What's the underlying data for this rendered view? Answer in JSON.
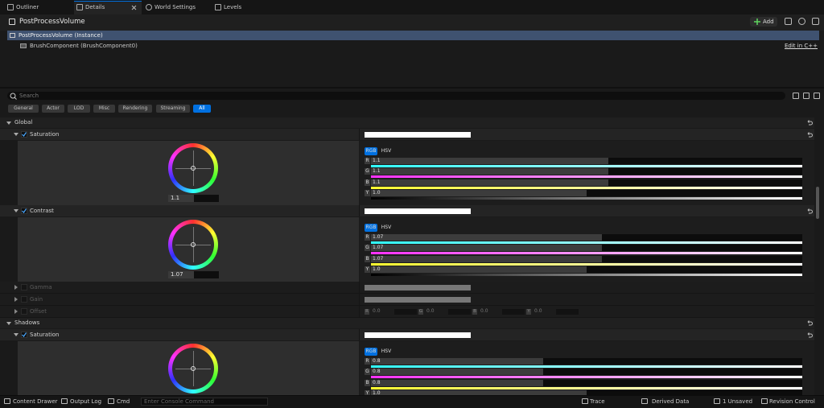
{
  "tabs": [
    "Outliner",
    "Details",
    "World Settings",
    "Levels"
  ],
  "header": {
    "title": "PostProcessVolume",
    "add": "Add"
  },
  "components": [
    "PostProcessVolume (Instance)",
    "BrushComponent (BrushComponent0)"
  ],
  "edit_link": "Edit in C++",
  "search_placeholder": "Search",
  "filters": [
    "General",
    "Actor",
    "LOD",
    "Misc",
    "Rendering",
    "Streaming",
    "All"
  ],
  "active_filter": "All",
  "sections": [
    {
      "name": "Global",
      "properties": [
        {
          "name": "Saturation",
          "wheel_value": "1.1",
          "modes": [
            "RGB",
            "HSV"
          ],
          "channels": [
            {
              "label": "R",
              "value": "1.1"
            },
            {
              "label": "G",
              "value": "1.1"
            },
            {
              "label": "B",
              "value": "1.1"
            },
            {
              "label": "Y",
              "value": "1.0"
            }
          ]
        },
        {
          "name": "Contrast",
          "wheel_value": "1.07",
          "modes": [
            "RGB",
            "HSV"
          ],
          "channels": [
            {
              "label": "R",
              "value": "1.07"
            },
            {
              "label": "G",
              "value": "1.07"
            },
            {
              "label": "B",
              "value": "1.07"
            },
            {
              "label": "Y",
              "value": "1.0"
            }
          ]
        }
      ],
      "collapsed": [
        {
          "name": "Gamma"
        },
        {
          "name": "Gain"
        },
        {
          "name": "Offset",
          "channels": [
            {
              "label": "R",
              "value": "0.0"
            },
            {
              "label": "G",
              "value": "0.0"
            },
            {
              "label": "B",
              "value": "0.0"
            },
            {
              "label": "Y",
              "value": "0.0"
            }
          ]
        }
      ]
    },
    {
      "name": "Shadows",
      "properties": [
        {
          "name": "Saturation",
          "wheel_value": "",
          "modes": [
            "RGB",
            "HSV"
          ],
          "channels": [
            {
              "label": "R",
              "value": "0.8"
            },
            {
              "label": "G",
              "value": "0.8"
            },
            {
              "label": "B",
              "value": "0.8"
            },
            {
              "label": "Y",
              "value": "1.0"
            }
          ]
        }
      ],
      "collapsed": []
    }
  ],
  "statusbar": {
    "left": [
      "Content Drawer",
      "Output Log",
      "Cmd"
    ],
    "console_placeholder": "Enter Console Command",
    "right": [
      "Trace",
      "Derived Data",
      "1 Unsaved",
      "Revision Control"
    ]
  }
}
